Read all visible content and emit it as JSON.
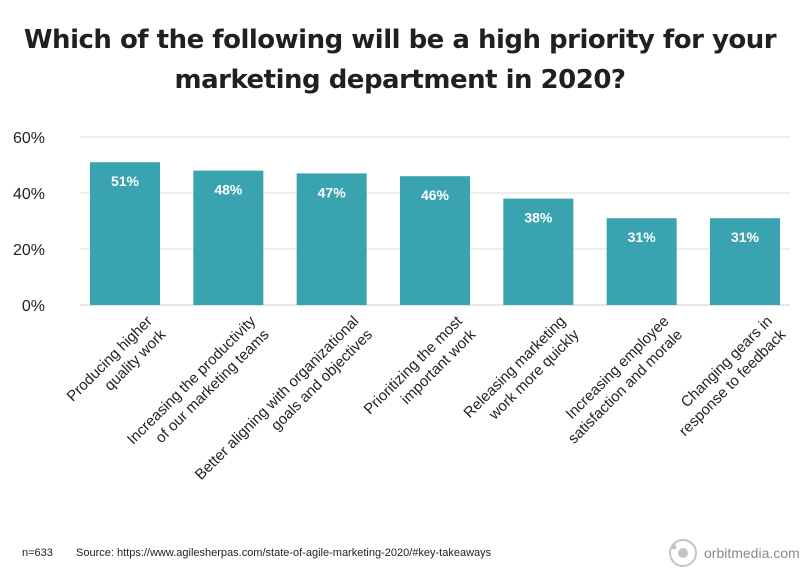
{
  "chart_data": {
    "type": "bar",
    "title": "Which of the following will be a high priority for your marketing department in 2020?",
    "title_lines": [
      "Which of the following will be a high priority for your",
      "marketing department in 2020?"
    ],
    "categories": [
      "Producing higher quality work",
      "Increasing the productivity of our marketing teams",
      "Better aligning with organizational goals and objectives",
      "Prioritizing the most important work",
      "Releasing marketing work more quickly",
      "Increasing employee satisfaction and morale",
      "Changing gears in response to feedback"
    ],
    "category_lines": [
      [
        "Producing higher",
        "quality work"
      ],
      [
        "Increasing the productivity",
        "of our marketing teams"
      ],
      [
        "Better aligning with organizational",
        "goals and objectives"
      ],
      [
        "Prioritizing the most",
        "important work"
      ],
      [
        "Releasing marketing",
        "work more quickly"
      ],
      [
        "Increasing employee",
        "satisfaction and morale"
      ],
      [
        "Changing gears in",
        "response to feedback"
      ]
    ],
    "values": [
      51,
      48,
      47,
      46,
      38,
      31,
      31
    ],
    "data_labels": [
      "51%",
      "48%",
      "47%",
      "46%",
      "38%",
      "31%",
      "31%"
    ],
    "ylim": [
      0,
      60
    ],
    "yticks": [
      0,
      20,
      40,
      60
    ],
    "ytick_labels": [
      "0%",
      "20%",
      "40%",
      "60%"
    ],
    "xlabel": "",
    "ylabel": "",
    "grid": true,
    "bar_color": "#3aa3b0",
    "grid_color": "#dddddd"
  },
  "footer": {
    "sample": "n=633",
    "source": "Source: https://www.agilesherpas.com/state-of-agile-marketing-2020/#key-takeaways",
    "brand": "orbitmedia.com"
  }
}
